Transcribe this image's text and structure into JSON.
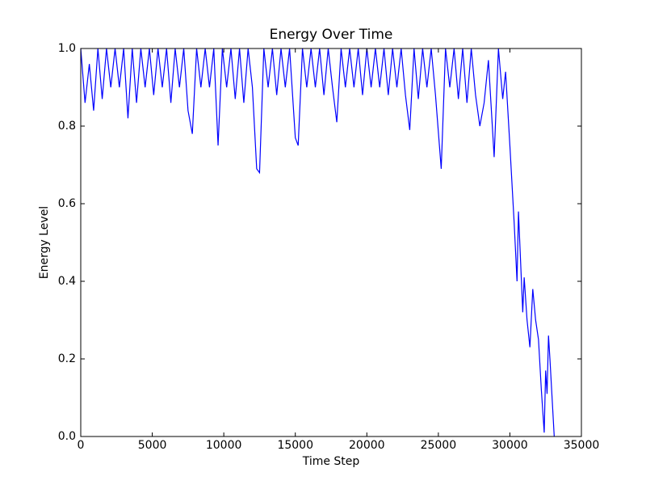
{
  "chart_data": {
    "type": "line",
    "title": "Energy Over Time",
    "x_label": "Time Step",
    "y_label": "Energy Level",
    "x": [
      0,
      300,
      600,
      900,
      1200,
      1500,
      1800,
      2100,
      2400,
      2700,
      3000,
      3300,
      3600,
      3900,
      4200,
      4500,
      4800,
      5100,
      5400,
      5700,
      6000,
      6300,
      6600,
      6900,
      7200,
      7500,
      7800,
      8100,
      8400,
      8700,
      9000,
      9300,
      9600,
      9900,
      10200,
      10500,
      10800,
      11100,
      11400,
      11700,
      12000,
      12300,
      12500,
      12800,
      13100,
      13400,
      13700,
      14000,
      14300,
      14600,
      15000,
      15200,
      15500,
      15800,
      16100,
      16400,
      16700,
      17000,
      17300,
      17600,
      17900,
      18200,
      18500,
      18800,
      19100,
      19400,
      19700,
      20000,
      20300,
      20600,
      20900,
      21200,
      21500,
      21800,
      22100,
      22400,
      22700,
      23000,
      23300,
      23600,
      23900,
      24200,
      24500,
      24800,
      25200,
      25500,
      25800,
      26100,
      26400,
      26700,
      27000,
      27300,
      27600,
      27900,
      28200,
      28500,
      28900,
      29200,
      29500,
      29700,
      30000,
      30300,
      30500,
      30600,
      30900,
      31000,
      31200,
      31400,
      31600,
      31800,
      32000,
      32200,
      32400,
      32500,
      32600,
      32700,
      32800,
      33100
    ],
    "series": [
      {
        "name": "Energy",
        "color": "#0000ff",
        "values": [
          1.0,
          0.86,
          0.96,
          0.84,
          1.0,
          0.87,
          1.0,
          0.9,
          1.0,
          0.9,
          1.0,
          0.82,
          1.0,
          0.86,
          1.0,
          0.9,
          1.0,
          0.88,
          1.0,
          0.9,
          1.0,
          0.86,
          1.0,
          0.9,
          1.0,
          0.84,
          0.78,
          1.0,
          0.9,
          1.0,
          0.9,
          1.0,
          0.75,
          1.0,
          0.9,
          1.0,
          0.87,
          1.0,
          0.86,
          1.0,
          0.9,
          0.69,
          0.68,
          1.0,
          0.9,
          1.0,
          0.88,
          1.0,
          0.9,
          1.0,
          0.77,
          0.75,
          1.0,
          0.9,
          1.0,
          0.9,
          1.0,
          0.88,
          1.0,
          0.9,
          0.81,
          1.0,
          0.9,
          1.0,
          0.9,
          1.0,
          0.88,
          1.0,
          0.9,
          1.0,
          0.9,
          1.0,
          0.88,
          1.0,
          0.9,
          1.0,
          0.88,
          0.79,
          1.0,
          0.87,
          1.0,
          0.9,
          1.0,
          0.88,
          0.69,
          1.0,
          0.9,
          1.0,
          0.87,
          1.0,
          0.86,
          1.0,
          0.88,
          0.8,
          0.86,
          0.97,
          0.72,
          1.0,
          0.87,
          0.94,
          0.75,
          0.55,
          0.4,
          0.58,
          0.32,
          0.41,
          0.3,
          0.23,
          0.38,
          0.3,
          0.25,
          0.12,
          0.01,
          0.17,
          0.11,
          0.26,
          0.2,
          0.0
        ]
      }
    ],
    "xlim": [
      0,
      35000
    ],
    "xticks": [
      0,
      5000,
      10000,
      15000,
      20000,
      25000,
      30000,
      35000
    ],
    "ylim": [
      0,
      1
    ],
    "yticks": [
      {
        "value": 0,
        "label": "0.0"
      },
      0.2,
      0.4,
      0.6,
      0.8,
      {
        "value": 1,
        "label": "1.0"
      }
    ]
  }
}
